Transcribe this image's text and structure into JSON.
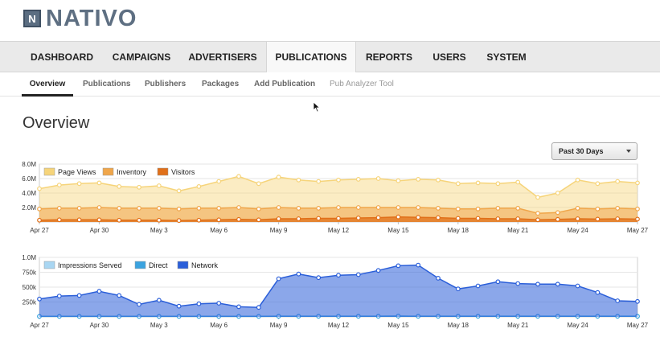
{
  "brand": {
    "logo_letter": "N",
    "name": "NATIVO"
  },
  "main_nav": [
    {
      "label": "DASHBOARD",
      "active": false
    },
    {
      "label": "CAMPAIGNS",
      "active": false
    },
    {
      "label": "ADVERTISERS",
      "active": false
    },
    {
      "label": "PUBLICATIONS",
      "active": true
    },
    {
      "label": "REPORTS",
      "active": false
    },
    {
      "label": "USERS",
      "active": false
    },
    {
      "label": "SYSTEM",
      "active": false
    }
  ],
  "sub_nav": [
    {
      "label": "Overview",
      "active": true
    },
    {
      "label": "Publications",
      "active": false
    },
    {
      "label": "Publishers",
      "active": false
    },
    {
      "label": "Packages",
      "active": false
    },
    {
      "label": "Add Publication",
      "active": false
    },
    {
      "label": "Pub Analyzer Tool",
      "active": false
    }
  ],
  "page_title": "Overview",
  "date_range": {
    "selected": "Past 30 Days"
  },
  "chart_data": [
    {
      "type": "area",
      "x": [
        "Apr 27",
        "Apr 28",
        "Apr 29",
        "Apr 30",
        "May 1",
        "May 2",
        "May 3",
        "May 4",
        "May 5",
        "May 6",
        "May 7",
        "May 8",
        "May 9",
        "May 10",
        "May 11",
        "May 12",
        "May 13",
        "May 14",
        "May 15",
        "May 16",
        "May 17",
        "May 18",
        "May 19",
        "May 20",
        "May 21",
        "May 22",
        "May 23",
        "May 24",
        "May 25",
        "May 26",
        "May 27"
      ],
      "x_tick_labels": [
        "Apr 27",
        "Apr 30",
        "May 3",
        "May 6",
        "May 9",
        "May 12",
        "May 15",
        "May 18",
        "May 21",
        "May 24",
        "May 27"
      ],
      "ylim": [
        0,
        8000000
      ],
      "y_tick_labels": [
        "8.0M",
        "6.0M",
        "4.0M",
        "2.0M"
      ],
      "grid": true,
      "legend_position": "top-left",
      "series": [
        {
          "name": "Page Views",
          "color": "#f6d47a",
          "values": [
            4.6,
            5.1,
            5.3,
            5.4,
            4.9,
            4.8,
            5.0,
            4.3,
            4.9,
            5.6,
            6.3,
            5.3,
            6.2,
            5.8,
            5.6,
            5.8,
            5.9,
            6.0,
            5.7,
            5.9,
            5.8,
            5.3,
            5.4,
            5.3,
            5.5,
            3.4,
            4.0,
            5.8,
            5.3,
            5.6,
            5.4
          ]
        },
        {
          "name": "Inventory",
          "color": "#f0a64a",
          "values": [
            1.8,
            1.9,
            1.9,
            2.0,
            1.9,
            1.9,
            1.9,
            1.8,
            1.9,
            1.9,
            2.0,
            1.8,
            2.0,
            1.9,
            1.9,
            2.0,
            2.0,
            2.0,
            2.0,
            2.0,
            1.9,
            1.8,
            1.8,
            1.9,
            1.9,
            1.2,
            1.3,
            1.9,
            1.8,
            1.9,
            1.8
          ]
        },
        {
          "name": "Visitors",
          "color": "#e0701a",
          "values": [
            0.25,
            0.3,
            0.3,
            0.3,
            0.25,
            0.25,
            0.25,
            0.2,
            0.25,
            0.3,
            0.35,
            0.3,
            0.45,
            0.45,
            0.5,
            0.5,
            0.55,
            0.6,
            0.7,
            0.65,
            0.6,
            0.5,
            0.5,
            0.45,
            0.45,
            0.3,
            0.35,
            0.45,
            0.4,
            0.45,
            0.4
          ]
        }
      ]
    },
    {
      "type": "area",
      "x": [
        "Apr 27",
        "Apr 28",
        "Apr 29",
        "Apr 30",
        "May 1",
        "May 2",
        "May 3",
        "May 4",
        "May 5",
        "May 6",
        "May 7",
        "May 8",
        "May 9",
        "May 10",
        "May 11",
        "May 12",
        "May 13",
        "May 14",
        "May 15",
        "May 16",
        "May 17",
        "May 18",
        "May 19",
        "May 20",
        "May 21",
        "May 22",
        "May 23",
        "May 24",
        "May 25",
        "May 26",
        "May 27"
      ],
      "x_tick_labels": [
        "Apr 27",
        "Apr 30",
        "May 3",
        "May 6",
        "May 9",
        "May 12",
        "May 15",
        "May 18",
        "May 21",
        "May 24",
        "May 27"
      ],
      "ylim": [
        0,
        1000000
      ],
      "y_tick_labels": [
        "1.0M",
        "750k",
        "500k",
        "250k"
      ],
      "grid": true,
      "legend_position": "top-left",
      "series": [
        {
          "name": "Impressions Served",
          "color": "#a9d6f2",
          "values": [
            10000,
            10000,
            10000,
            10000,
            10000,
            10000,
            10000,
            10000,
            10000,
            10000,
            10000,
            10000,
            12000,
            12000,
            12000,
            12000,
            12000,
            12000,
            15000,
            12000,
            12000,
            12000,
            12000,
            12000,
            12000,
            12000,
            12000,
            12000,
            12000,
            12000,
            12000
          ]
        },
        {
          "name": "Direct",
          "color": "#3ba3df",
          "values": [
            8000,
            8000,
            8000,
            8000,
            8000,
            8000,
            8000,
            8000,
            8000,
            8000,
            8000,
            8000,
            10000,
            10000,
            10000,
            10000,
            10000,
            10000,
            12000,
            10000,
            10000,
            10000,
            10000,
            10000,
            10000,
            10000,
            10000,
            10000,
            10000,
            10000,
            10000
          ]
        },
        {
          "name": "Network",
          "color": "#2b5fd9",
          "values": [
            300000,
            350000,
            360000,
            430000,
            360000,
            210000,
            280000,
            180000,
            220000,
            230000,
            170000,
            160000,
            640000,
            720000,
            660000,
            700000,
            710000,
            780000,
            860000,
            870000,
            650000,
            470000,
            520000,
            590000,
            560000,
            550000,
            550000,
            520000,
            410000,
            270000,
            260000
          ]
        }
      ]
    }
  ]
}
